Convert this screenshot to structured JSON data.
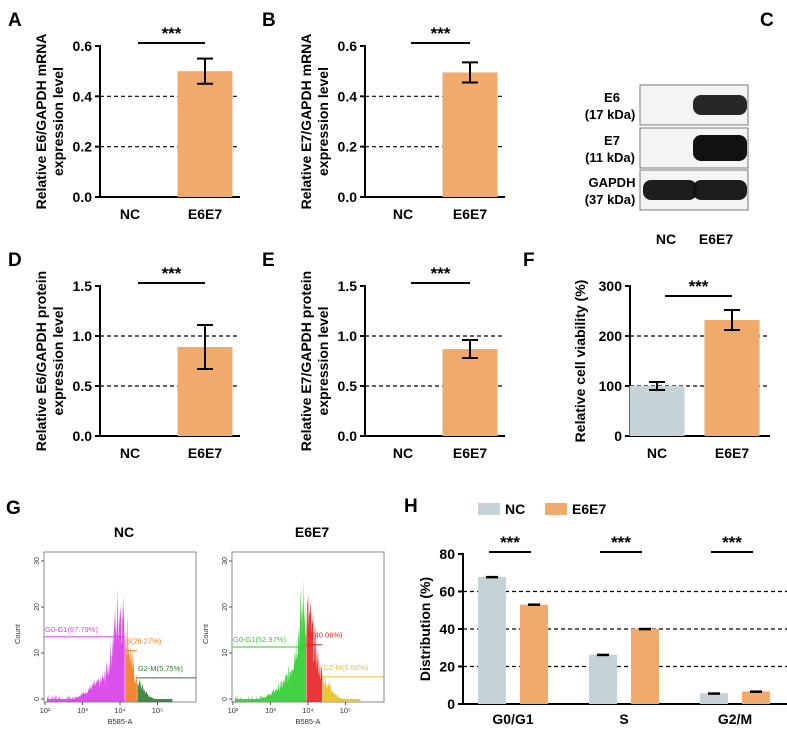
{
  "colors": {
    "nc": "#c5d3d8",
    "e6e7": "#f0aa6c",
    "axis": "#000000"
  },
  "chart_data": [
    {
      "panel": "A",
      "type": "bar",
      "ylabel": [
        "Relative E6/GAPDH mRNA",
        "expression level"
      ],
      "ylim": [
        0,
        0.6
      ],
      "yticks": [
        "0.0",
        "0.2",
        "0.4",
        "0.6"
      ],
      "ytick_values": [
        0,
        0.2,
        0.4,
        0.6
      ],
      "dashed_grid": [
        0.2,
        0.4
      ],
      "categories": [
        "NC",
        "E6E7"
      ],
      "values": [
        0,
        0.5
      ],
      "errors": [
        0,
        0.05
      ],
      "significance": "***"
    },
    {
      "panel": "B",
      "type": "bar",
      "ylabel": [
        "Relative E7/GAPDH mRNA",
        "expression level"
      ],
      "ylim": [
        0,
        0.6
      ],
      "yticks": [
        "0.0",
        "0.2",
        "0.4",
        "0.6"
      ],
      "ytick_values": [
        0,
        0.2,
        0.4,
        0.6
      ],
      "dashed_grid": [
        0.2,
        0.4
      ],
      "categories": [
        "NC",
        "E6E7"
      ],
      "values": [
        0,
        0.495
      ],
      "errors": [
        0,
        0.04
      ],
      "significance": "***"
    },
    {
      "panel": "C",
      "type": "western-blot",
      "bands": [
        {
          "name": "E6",
          "size": "(17 kDa)",
          "intensity": [
            0,
            0.9
          ]
        },
        {
          "name": "E7",
          "size": "(11 kDa)",
          "intensity": [
            0,
            1.0
          ]
        },
        {
          "name": "GAPDH",
          "size": "(37 kDa)",
          "intensity": [
            0.95,
            0.95
          ]
        }
      ],
      "categories": [
        "NC",
        "E6E7"
      ]
    },
    {
      "panel": "D",
      "type": "bar",
      "ylabel": [
        "Relative E6/GAPDH protein",
        "expression level"
      ],
      "ylim": [
        0,
        1.5
      ],
      "yticks": [
        "0.0",
        "0.5",
        "1.0",
        "1.5"
      ],
      "ytick_values": [
        0,
        0.5,
        1.0,
        1.5
      ],
      "dashed_grid": [
        0.5,
        1.0
      ],
      "categories": [
        "NC",
        "E6E7"
      ],
      "values": [
        0,
        0.89
      ],
      "errors": [
        0,
        0.22
      ],
      "significance": "***"
    },
    {
      "panel": "E",
      "type": "bar",
      "ylabel": [
        "Relative E7/GAPDH protein",
        "expression level"
      ],
      "ylim": [
        0,
        1.5
      ],
      "yticks": [
        "0.0",
        "0.5",
        "1.0",
        "1.5"
      ],
      "ytick_values": [
        0,
        0.5,
        1.0,
        1.5
      ],
      "dashed_grid": [
        0.5,
        1.0
      ],
      "categories": [
        "NC",
        "E6E7"
      ],
      "values": [
        0,
        0.87
      ],
      "errors": [
        0,
        0.09
      ],
      "significance": "***"
    },
    {
      "panel": "F",
      "type": "bar",
      "ylabel": [
        "Relative cell viability (%)"
      ],
      "ylim": [
        0,
        300
      ],
      "yticks": [
        "0",
        "100",
        "200",
        "300"
      ],
      "ytick_values": [
        0,
        100,
        200,
        300
      ],
      "dashed_grid": [
        100,
        200
      ],
      "categories": [
        "NC",
        "E6E7"
      ],
      "values": [
        100,
        232
      ],
      "errors": [
        8,
        20
      ],
      "significance": "***"
    },
    {
      "panel": "G",
      "type": "histogram",
      "xlabel": "B585-A",
      "ylabel": "Count",
      "xticks": [
        "10²",
        "10³",
        "10⁴",
        "10⁵"
      ],
      "yticks": [
        "0",
        "10",
        "20",
        "30"
      ],
      "plots": [
        {
          "title": "NC",
          "gates": [
            {
              "label": "G0-G1(67.79%)",
              "color": "#d63ee8"
            },
            {
              "label": "S(26.27%)",
              "color": "#f07a1e"
            },
            {
              "label": "G2-M(5.75%)",
              "color": "#2e7d32"
            }
          ]
        },
        {
          "title": "E6E7",
          "gates": [
            {
              "label": "G0-G1(52.97%)",
              "color": "#2ecc2e"
            },
            {
              "label": "S(40.06%)",
              "color": "#e82020"
            },
            {
              "label": "G2-M(6.66%)",
              "color": "#e8c020"
            }
          ]
        }
      ]
    },
    {
      "panel": "H",
      "type": "bar",
      "ylabel": [
        "Distribution (%)"
      ],
      "ylim": [
        0,
        80
      ],
      "yticks": [
        "0",
        "20",
        "40",
        "60",
        "80"
      ],
      "ytick_values": [
        0,
        20,
        40,
        60,
        80
      ],
      "dashed_grid": [
        20,
        40,
        60
      ],
      "categories": [
        "G0/G1",
        "S",
        "G2/M"
      ],
      "legend": [
        "NC",
        "E6E7"
      ],
      "legend_position": "top",
      "series": [
        {
          "name": "NC",
          "values": [
            67.8,
            26.3,
            5.8
          ],
          "errors": [
            0.4,
            0.4,
            0.3
          ]
        },
        {
          "name": "E6E7",
          "values": [
            53.0,
            40.1,
            6.7
          ],
          "errors": [
            0.5,
            0.4,
            0.4
          ]
        }
      ],
      "significance": [
        "***",
        "***",
        "***"
      ]
    }
  ]
}
